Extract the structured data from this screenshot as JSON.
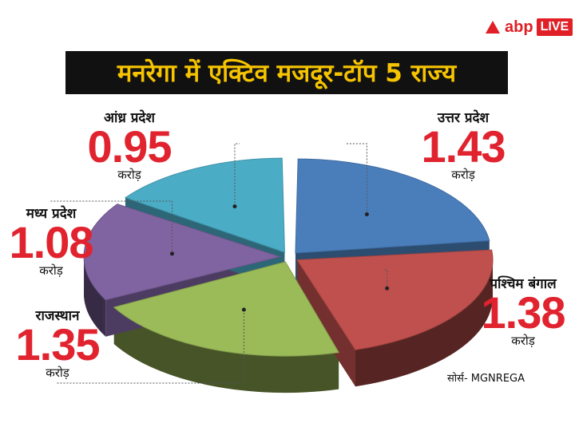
{
  "brand": {
    "name": "abp",
    "badge": "LIVE"
  },
  "chart_data": {
    "type": "pie",
    "title": "मनरेगा में एक्टिव मजदूर-टॉप 5 राज्य",
    "unit": "करोड़",
    "categories": [
      "उत्तर प्रदेश",
      "पश्चिम बंगाल",
      "राजस्थान",
      "मध्य प्रदेश",
      "आंध्र प्रदेश"
    ],
    "values": [
      1.43,
      1.38,
      1.35,
      1.08,
      0.95
    ],
    "value_labels": [
      "1.43",
      "1.38",
      "1.35",
      "1.08",
      "0.95"
    ],
    "colors": [
      "#4a7ebb",
      "#c0504d",
      "#9bbb59",
      "#8064a2",
      "#4bacc6"
    ],
    "source": "सोर्स- MGNREGA"
  }
}
